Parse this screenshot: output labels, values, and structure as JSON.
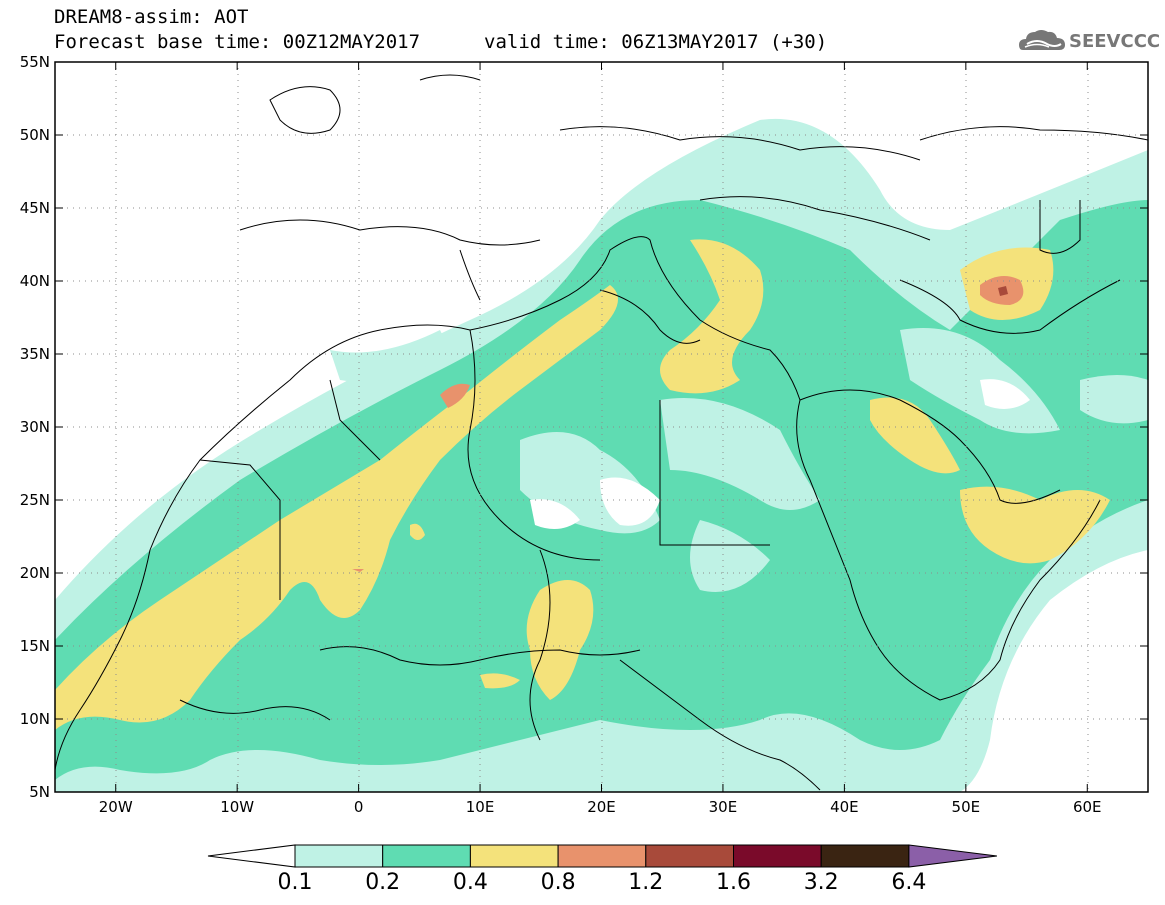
{
  "title": {
    "line1": "DREAM8-assim: AOT",
    "base": "Forecast base time: 00Z12MAY2017",
    "valid": "valid time: 06Z13MAY2017 (+30)"
  },
  "logo": {
    "text": "SEEVCCC",
    "icon": "cloud-icon"
  },
  "map": {
    "lat_labels": [
      "55N",
      "50N",
      "45N",
      "40N",
      "35N",
      "30N",
      "25N",
      "20N",
      "15N",
      "10N",
      "5N"
    ],
    "lon_labels": [
      "20W",
      "10W",
      "0",
      "10E",
      "20E",
      "30E",
      "40E",
      "50E",
      "60E"
    ],
    "lat_range": [
      5,
      55
    ],
    "lon_range": [
      -25,
      65
    ]
  },
  "colorbar": {
    "labels": [
      "0.1",
      "0.2",
      "0.4",
      "0.8",
      "1.2",
      "1.6",
      "3.2",
      "6.4"
    ],
    "colors": {
      "c1": "#bff2e5",
      "c2": "#5fdcb2",
      "c3": "#f4e27b",
      "c4": "#e8926c",
      "c5": "#a84a3a",
      "c6": "#7a0a2a",
      "c7": "#3a2412",
      "over": "#8b5fa8"
    }
  }
}
